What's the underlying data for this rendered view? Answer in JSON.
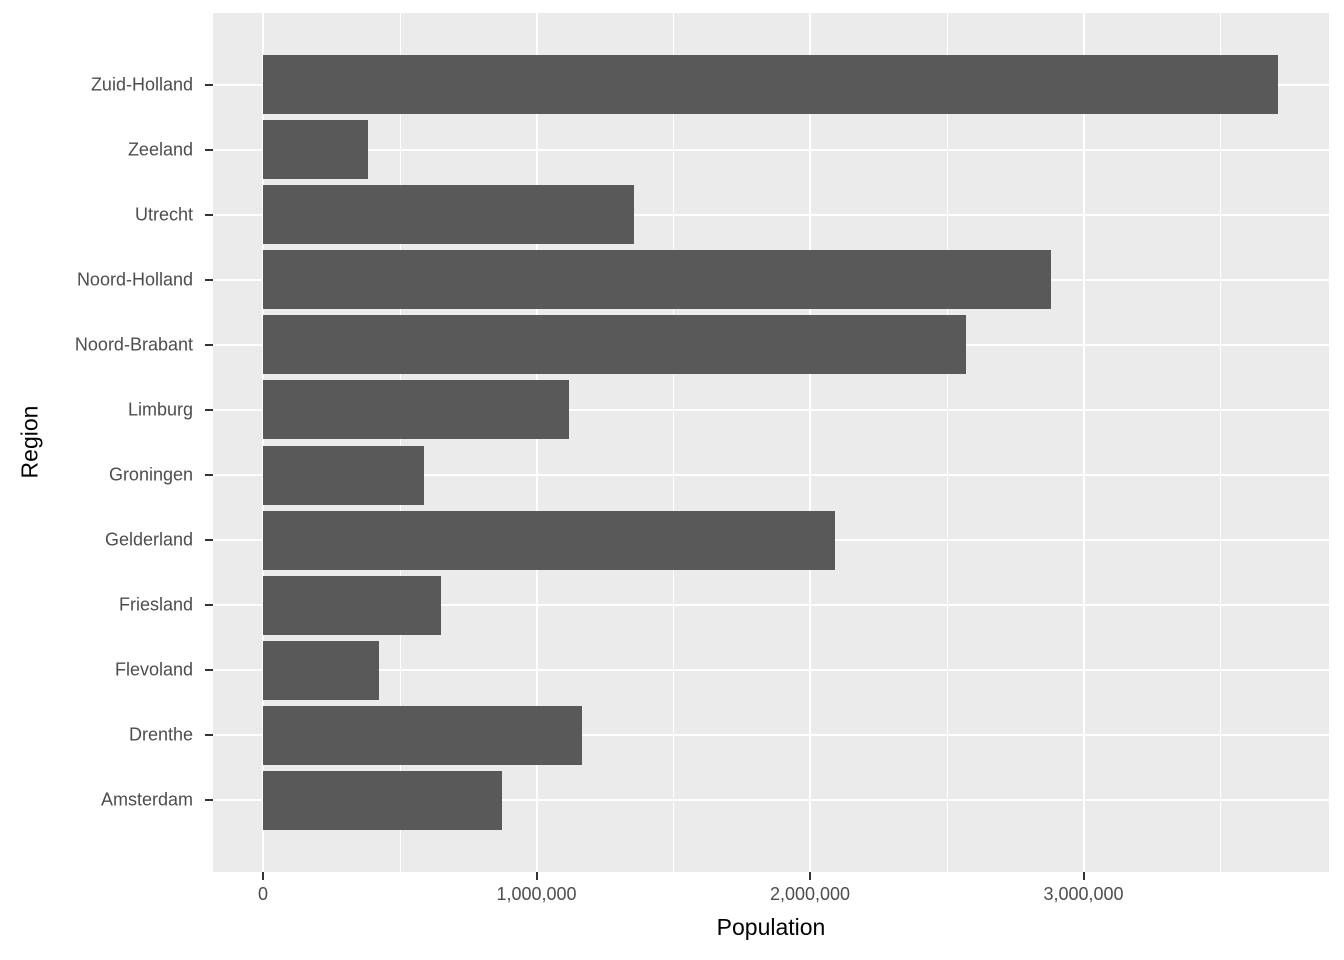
{
  "chart_data": {
    "type": "bar",
    "orientation": "horizontal",
    "title": "",
    "xlabel": "Population",
    "ylabel": "Region",
    "categories": [
      "Zuid-Holland",
      "Zeeland",
      "Utrecht",
      "Noord-Holland",
      "Noord-Brabant",
      "Limburg",
      "Groningen",
      "Gelderland",
      "Friesland",
      "Flevoland",
      "Drenthe",
      "Amsterdam"
    ],
    "values": [
      3710000,
      385000,
      1355000,
      2880000,
      2570000,
      1120000,
      590000,
      2090000,
      650000,
      425000,
      1165000,
      875000
    ],
    "x_tick_values": [
      0,
      1000000,
      2000000,
      3000000
    ],
    "x_tick_labels": [
      "0",
      "1,000,000",
      "2,000,000",
      "3,000,000"
    ],
    "x_minor_tick_values": [
      500000,
      1500000,
      2500000,
      3500000
    ],
    "xlim": [
      -180000,
      3900000
    ],
    "grid": "on",
    "legend": "none",
    "colors": {
      "bar_fill": "#595959",
      "panel_background": "#EBEBEB",
      "gridline": "#FFFFFF",
      "tick_label": "#4D4D4D",
      "axis_title": "#000000",
      "tick_mark": "#333333",
      "page_background": "#FFFFFF"
    }
  }
}
